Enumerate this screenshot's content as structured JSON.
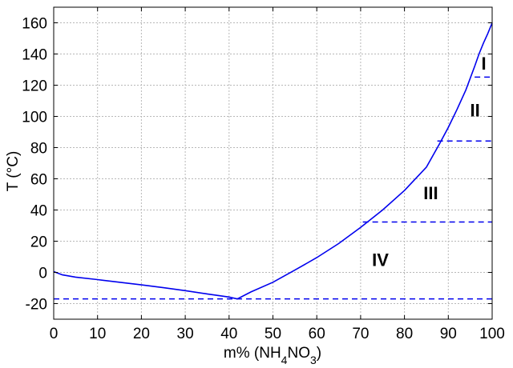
{
  "chart_data": {
    "type": "line",
    "xlabel": "m% (NH4NO3)",
    "xlabel_parts": {
      "prefix": "m% (NH",
      "sub1": "4",
      "mid": "NO",
      "sub2": "3",
      "suffix": ")"
    },
    "ylabel": "T (°C)",
    "xlim": [
      0,
      100
    ],
    "ylim": [
      -30,
      170
    ],
    "xticks": [
      0,
      10,
      20,
      30,
      40,
      50,
      60,
      70,
      80,
      90,
      100
    ],
    "xtick_labels": [
      "0",
      "10",
      "20",
      "30",
      "40",
      "50",
      "60",
      "70",
      "80",
      "90",
      "100"
    ],
    "yticks": [
      -20,
      0,
      20,
      40,
      60,
      80,
      100,
      120,
      140,
      160
    ],
    "ytick_labels": [
      "-20",
      "0",
      "20",
      "40",
      "60",
      "80",
      "100",
      "120",
      "140",
      "160"
    ],
    "grid": true,
    "colors": {
      "curve": "#0000ee",
      "phase_lines": "#0000ee"
    },
    "series": [
      {
        "x": [
          0,
          2,
          5,
          10,
          15,
          20,
          25,
          30,
          35,
          40,
          41.8,
          42,
          45,
          50,
          55,
          60,
          65,
          70,
          75,
          80,
          85,
          88,
          90,
          92,
          94,
          96,
          97,
          98,
          99,
          100
        ],
        "y": [
          0.5,
          -1.6,
          -3,
          -4.6,
          -6.3,
          -8,
          -9.8,
          -11.7,
          -13.8,
          -15.8,
          -16.9,
          -16.8,
          -12.5,
          -6.3,
          1.5,
          9.5,
          18.5,
          28.8,
          40,
          52.5,
          67.5,
          82.5,
          93,
          104.5,
          117,
          132,
          140,
          147,
          153,
          160
        ]
      }
    ],
    "phase_lines": [
      {
        "y": -17,
        "x_start": 0,
        "x_end": 100
      },
      {
        "y": 32.3,
        "x_start": 70.5,
        "x_end": 100
      },
      {
        "y": 84.2,
        "x_start": 87.5,
        "x_end": 100
      },
      {
        "y": 125.2,
        "x_start": 96,
        "x_end": 100
      }
    ],
    "regions": [
      {
        "label": "I",
        "x": 98.1,
        "y": 130
      },
      {
        "label": "II",
        "x": 96.1,
        "y": 100
      },
      {
        "label": "III",
        "x": 86,
        "y": 47
      },
      {
        "label": "IV",
        "x": 74.5,
        "y": 4
      }
    ]
  }
}
